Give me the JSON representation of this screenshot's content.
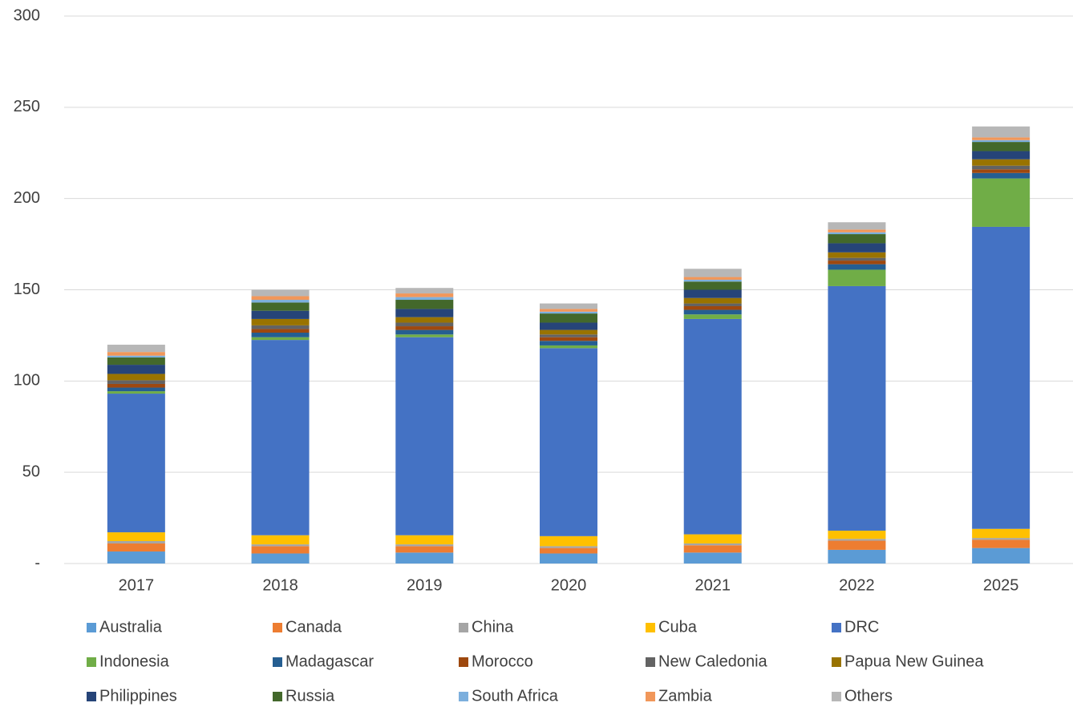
{
  "chart_data": {
    "type": "stacked_bar",
    "categories": [
      "2017",
      "2018",
      "2019",
      "2020",
      "2021",
      "2022",
      "2025"
    ],
    "ylim": [
      0,
      300
    ],
    "yticks": [
      {
        "value": 0,
        "label": "-"
      },
      50,
      100,
      150,
      200,
      250,
      300
    ],
    "grid": true,
    "legend": "bottom",
    "series": [
      {
        "name": "Australia",
        "color": "#5b9bd5",
        "values": [
          6.6,
          5.5,
          6,
          5.5,
          6,
          7.5,
          8.5
        ]
      },
      {
        "name": "Canada",
        "color": "#ed7d31",
        "values": [
          4.4,
          4,
          3.5,
          3,
          4,
          5,
          4.5
        ]
      },
      {
        "name": "China",
        "color": "#a5a5a5",
        "values": [
          1.3,
          1,
          1,
          1,
          1,
          1,
          1
        ]
      },
      {
        "name": "Cuba",
        "color": "#ffc000",
        "values": [
          4.8,
          5,
          5,
          5.5,
          5,
          4.5,
          5
        ]
      },
      {
        "name": "DRC",
        "color": "#4472c4",
        "values": [
          76,
          107,
          108.5,
          103,
          118,
          134,
          165.5
        ]
      },
      {
        "name": "Indonesia",
        "color": "#70ad47",
        "values": [
          1.3,
          1.5,
          1.5,
          1.5,
          2.5,
          9,
          26.5
        ]
      },
      {
        "name": "Madagascar",
        "color": "#255e91",
        "values": [
          2,
          2.5,
          2.5,
          2.5,
          2.5,
          3,
          3
        ]
      },
      {
        "name": "Morocco",
        "color": "#9e480e",
        "values": [
          2,
          2,
          2,
          2,
          2,
          2,
          2
        ]
      },
      {
        "name": "New Caledonia",
        "color": "#636363",
        "values": [
          2,
          2,
          2,
          1.5,
          1.5,
          1.5,
          2
        ]
      },
      {
        "name": "Papua New Guinea",
        "color": "#997300",
        "values": [
          3.5,
          3.5,
          3,
          2.5,
          3,
          3,
          3.5
        ]
      },
      {
        "name": "Philippines",
        "color": "#264478",
        "values": [
          5,
          4.5,
          4.5,
          4,
          4.5,
          5,
          4.5
        ]
      },
      {
        "name": "Russia",
        "color": "#43682b",
        "values": [
          4,
          4.5,
          5,
          5,
          4.5,
          5,
          5
        ]
      },
      {
        "name": "South Africa",
        "color": "#7cafdd",
        "values": [
          1,
          1.5,
          1.5,
          1,
          1,
          1,
          1
        ]
      },
      {
        "name": "Zambia",
        "color": "#f1975a",
        "values": [
          2,
          2,
          2,
          1.5,
          1.5,
          1.5,
          1.5
        ]
      },
      {
        "name": "Others",
        "color": "#b7b7b7",
        "values": [
          4,
          3.5,
          3,
          3,
          4.5,
          4,
          6
        ]
      }
    ]
  }
}
